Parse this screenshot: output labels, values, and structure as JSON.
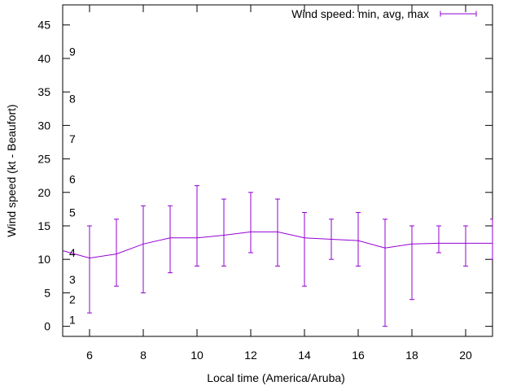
{
  "chart_data": {
    "type": "line",
    "title": "",
    "xlabel": "Local time (America/Aruba)",
    "ylabel": "Wind speed (kt - Beaufort)",
    "xlim": [
      5,
      21
    ],
    "ylim": [
      -1.5,
      48
    ],
    "xticks": [
      6,
      8,
      10,
      12,
      14,
      16,
      18,
      20
    ],
    "yticks": [
      0,
      5,
      10,
      15,
      20,
      25,
      30,
      35,
      40,
      45
    ],
    "grid": false,
    "legend": {
      "position": "top-right",
      "label": "Wind speed: min, avg, max"
    },
    "beaufort_labels": [
      {
        "label": "1",
        "value": 1
      },
      {
        "label": "2",
        "value": 4
      },
      {
        "label": "3",
        "value": 7
      },
      {
        "label": "4",
        "value": 11
      },
      {
        "label": "5",
        "value": 17
      },
      {
        "label": "6",
        "value": 22
      },
      {
        "label": "7",
        "value": 28
      },
      {
        "label": "8",
        "value": 34
      },
      {
        "label": "9",
        "value": 41
      }
    ],
    "series": [
      {
        "name": "Wind speed: min, avg, max",
        "color": "#9400d3",
        "x": [
          5,
          6,
          7,
          8,
          9,
          10,
          11,
          12,
          13,
          14,
          15,
          16,
          17,
          18,
          19,
          20,
          21
        ],
        "avg": [
          11.3,
          10.2,
          10.8,
          12.3,
          13.2,
          13.2,
          13.6,
          14.1,
          14.1,
          13.2,
          13.0,
          12.8,
          11.7,
          12.3,
          12.4,
          12.4,
          12.4
        ],
        "min": [
          null,
          2,
          6,
          5,
          8,
          9,
          9,
          11,
          9,
          6,
          10,
          9,
          0,
          4,
          11,
          9,
          10
        ],
        "max": [
          null,
          15,
          16,
          18,
          18,
          21,
          19,
          20,
          19,
          17,
          16,
          17,
          16,
          15,
          15,
          15,
          16
        ]
      }
    ]
  }
}
